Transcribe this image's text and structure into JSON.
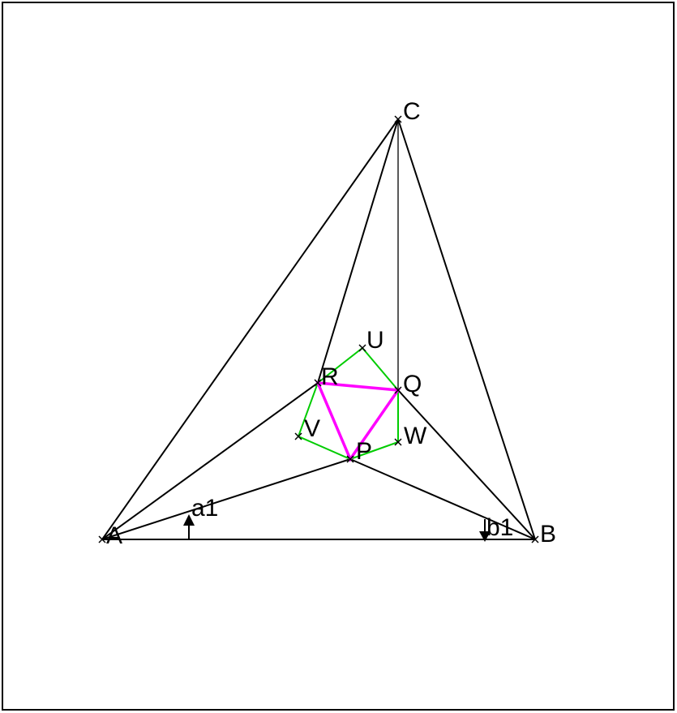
{
  "diagram": {
    "colors": {
      "frame": "#000000",
      "main_lines": "#000000",
      "hexagon": "#00cc00",
      "inner_triangle": "#ff00ff",
      "background": "#ffffff"
    },
    "points": {
      "A": {
        "label": "A"
      },
      "B": {
        "label": "B"
      },
      "C": {
        "label": "C"
      },
      "P": {
        "label": "P"
      },
      "Q": {
        "label": "Q"
      },
      "R": {
        "label": "R"
      },
      "U": {
        "label": "U"
      },
      "V": {
        "label": "V"
      },
      "W": {
        "label": "W"
      }
    },
    "angles": {
      "a1": {
        "label": "a1"
      },
      "b1": {
        "label": "b1"
      }
    }
  }
}
